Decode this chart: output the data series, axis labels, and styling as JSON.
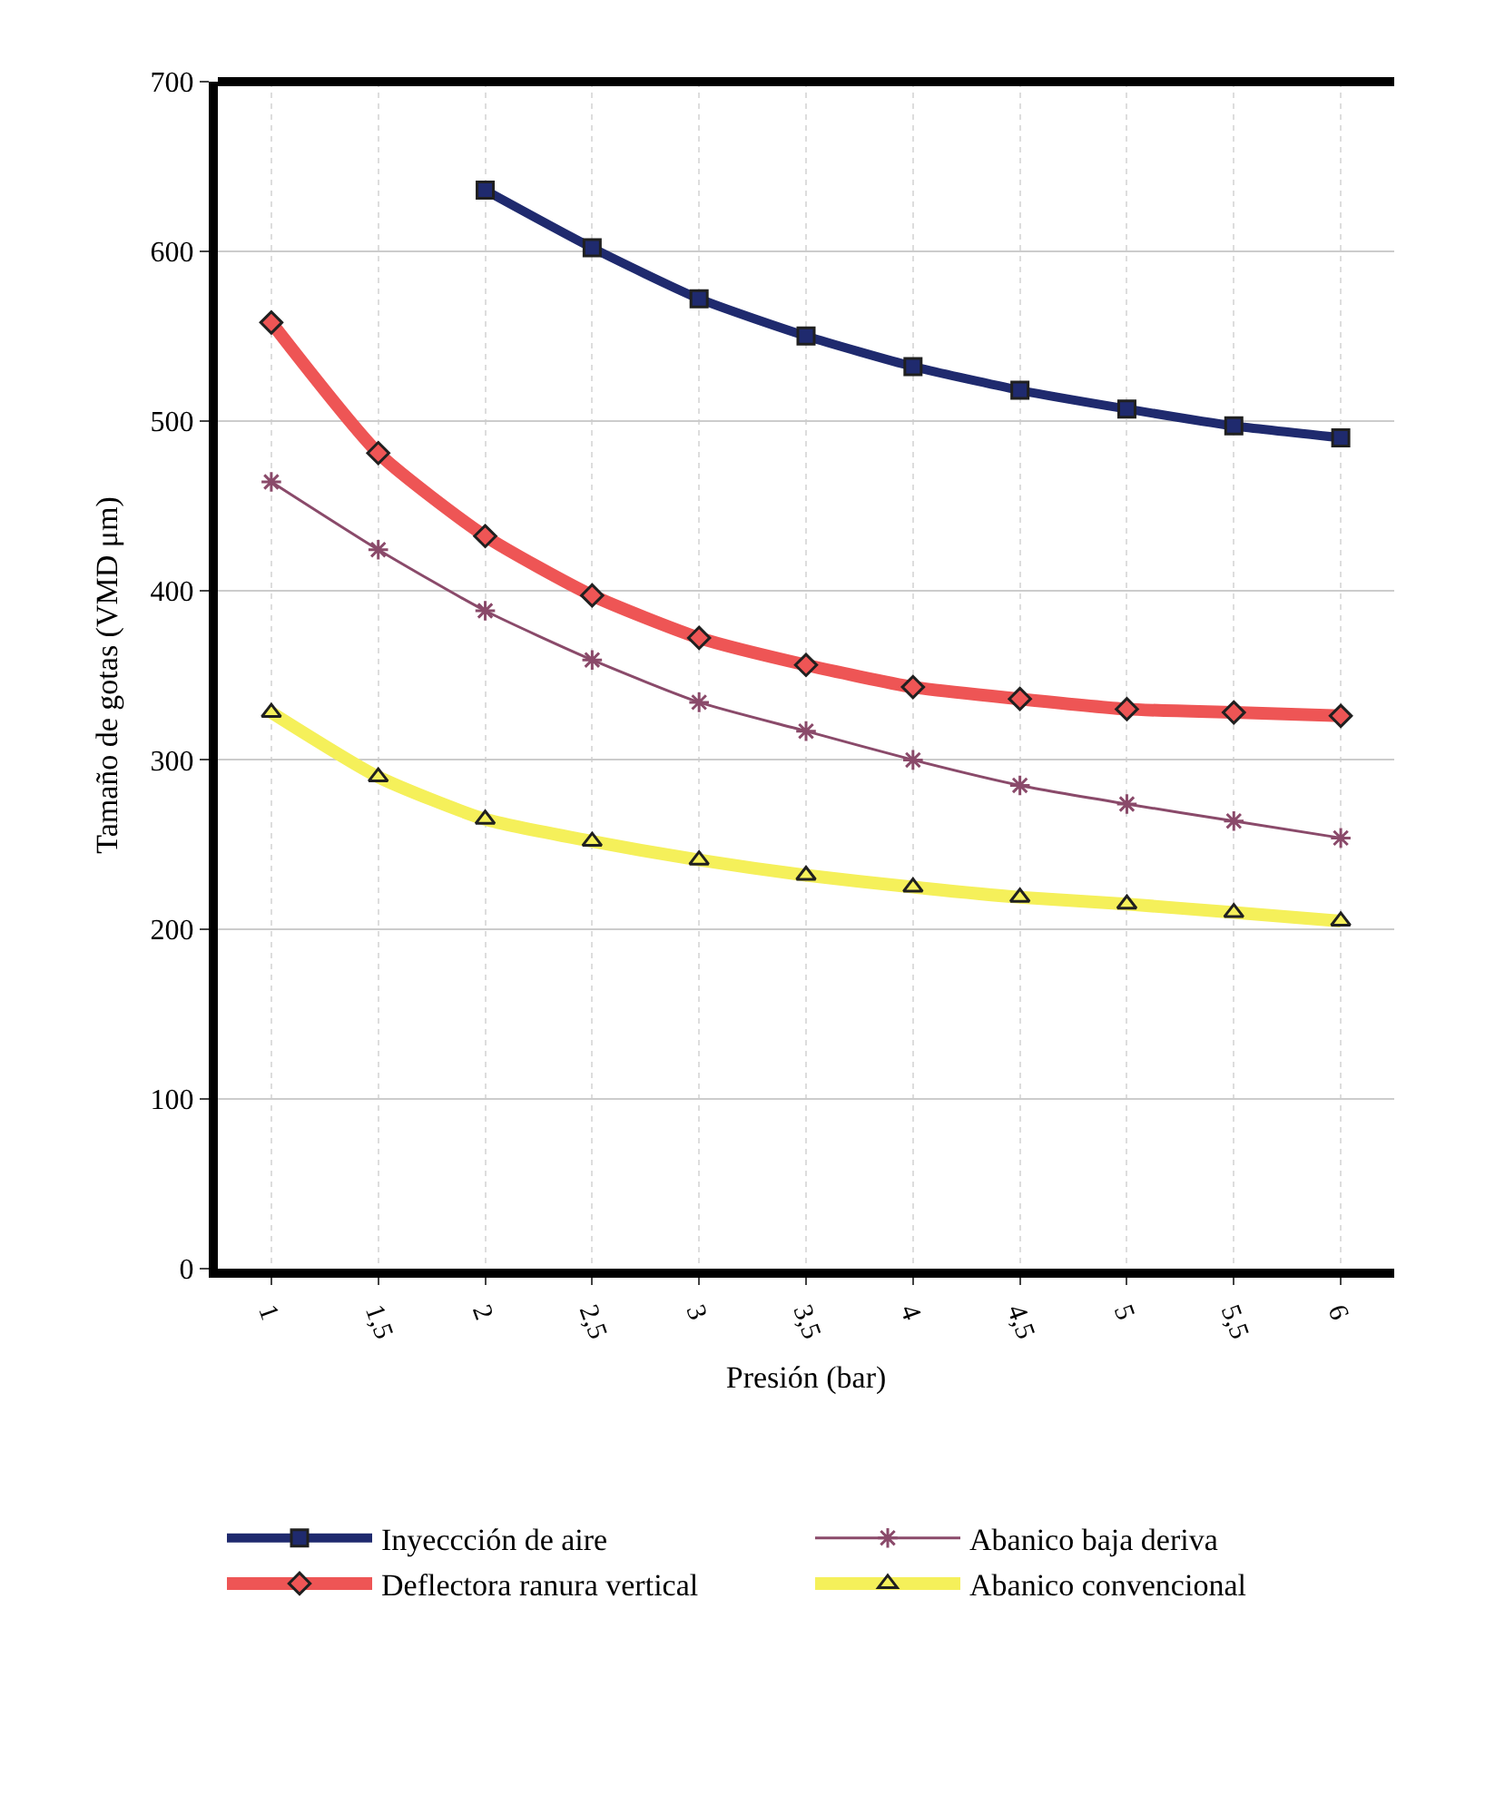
{
  "chart_data": {
    "type": "line",
    "xlabel": "Presión (bar)",
    "ylabel": "Tamaño de gotas (VMD μm)",
    "categories": [
      "1",
      "1,5",
      "2",
      "2,5",
      "3",
      "3,5",
      "4",
      "4,5",
      "5",
      "5,5",
      "6"
    ],
    "ylim": [
      0,
      700
    ],
    "yticks": [
      0,
      100,
      200,
      300,
      400,
      500,
      600,
      700
    ],
    "grid": true,
    "legend": "bottom",
    "series": [
      {
        "name": "Inyeccción de aire",
        "color": "#1f2a6e",
        "marker": "square",
        "values": [
          null,
          null,
          636,
          602,
          572,
          550,
          532,
          518,
          507,
          497,
          490
        ]
      },
      {
        "name": "Abanico baja deriva",
        "color": "#8a4a6a",
        "marker": "cross",
        "values": [
          464,
          424,
          388,
          359,
          334,
          317,
          300,
          285,
          274,
          264,
          254
        ]
      },
      {
        "name": "Deflectora ranura vertical",
        "color": "#ee5555",
        "marker": "diamond",
        "values": [
          558,
          481,
          432,
          397,
          372,
          356,
          343,
          336,
          330,
          328,
          326
        ]
      },
      {
        "name": "Abanico convencional",
        "color": "#f5f05a",
        "marker": "triangle",
        "values": [
          328,
          290,
          265,
          252,
          241,
          232,
          225,
          219,
          215,
          210,
          205
        ]
      }
    ]
  }
}
